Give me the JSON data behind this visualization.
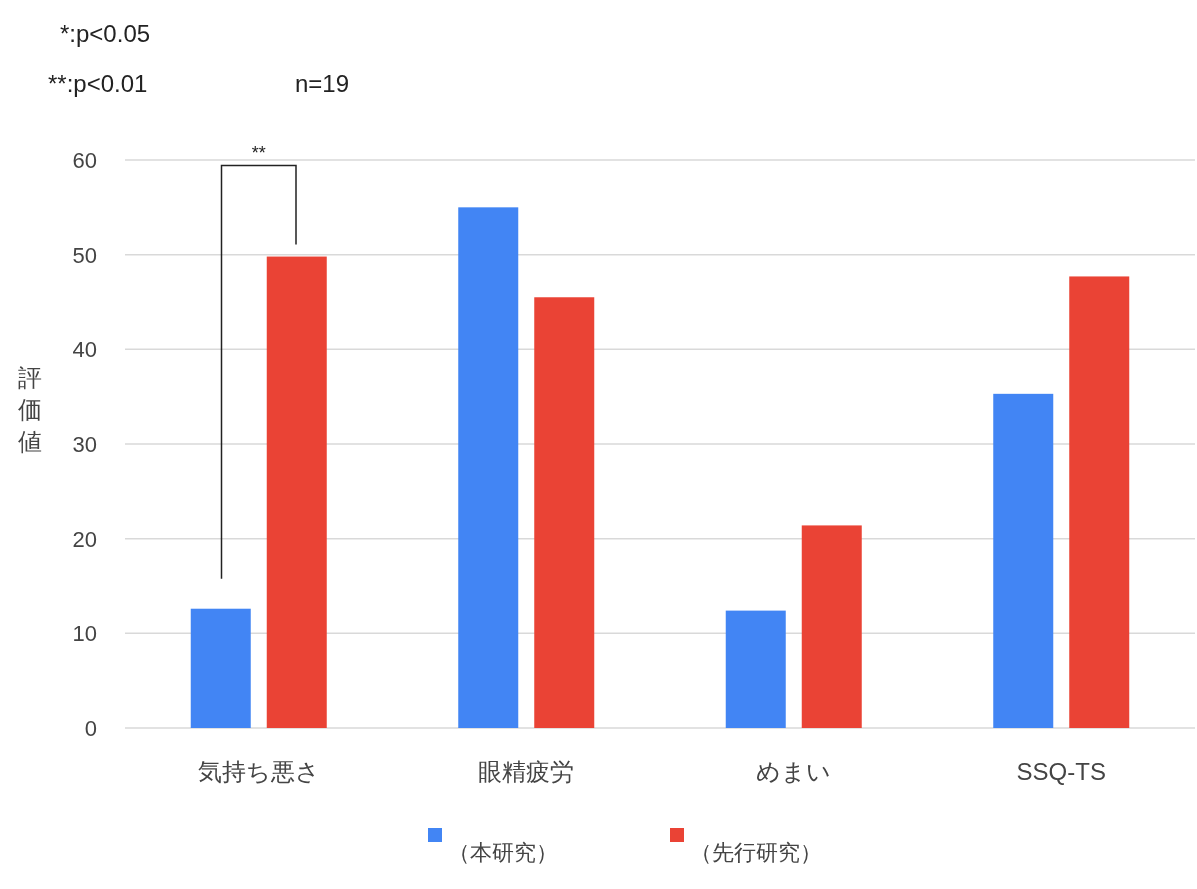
{
  "chart_data": {
    "type": "bar",
    "ylabel": "評価値",
    "categories": [
      "気持ち悪さ",
      "眼精疲労",
      "めまい",
      "SSQ-TS"
    ],
    "series": [
      {
        "name": "（本研究）",
        "color": "#4285f4",
        "values": [
          12.6,
          55.0,
          12.4,
          35.3
        ]
      },
      {
        "name": "（先行研究）",
        "color": "#ea4335",
        "values": [
          49.8,
          45.5,
          21.4,
          47.7
        ]
      }
    ],
    "ylim": [
      0,
      60
    ],
    "yticks": [
      0,
      10,
      20,
      30,
      40,
      50,
      60
    ],
    "grid": "y",
    "legend": "bottom",
    "annotations": [
      "*:p<0.05",
      "**:p<0.01",
      "n=19",
      "**"
    ]
  }
}
